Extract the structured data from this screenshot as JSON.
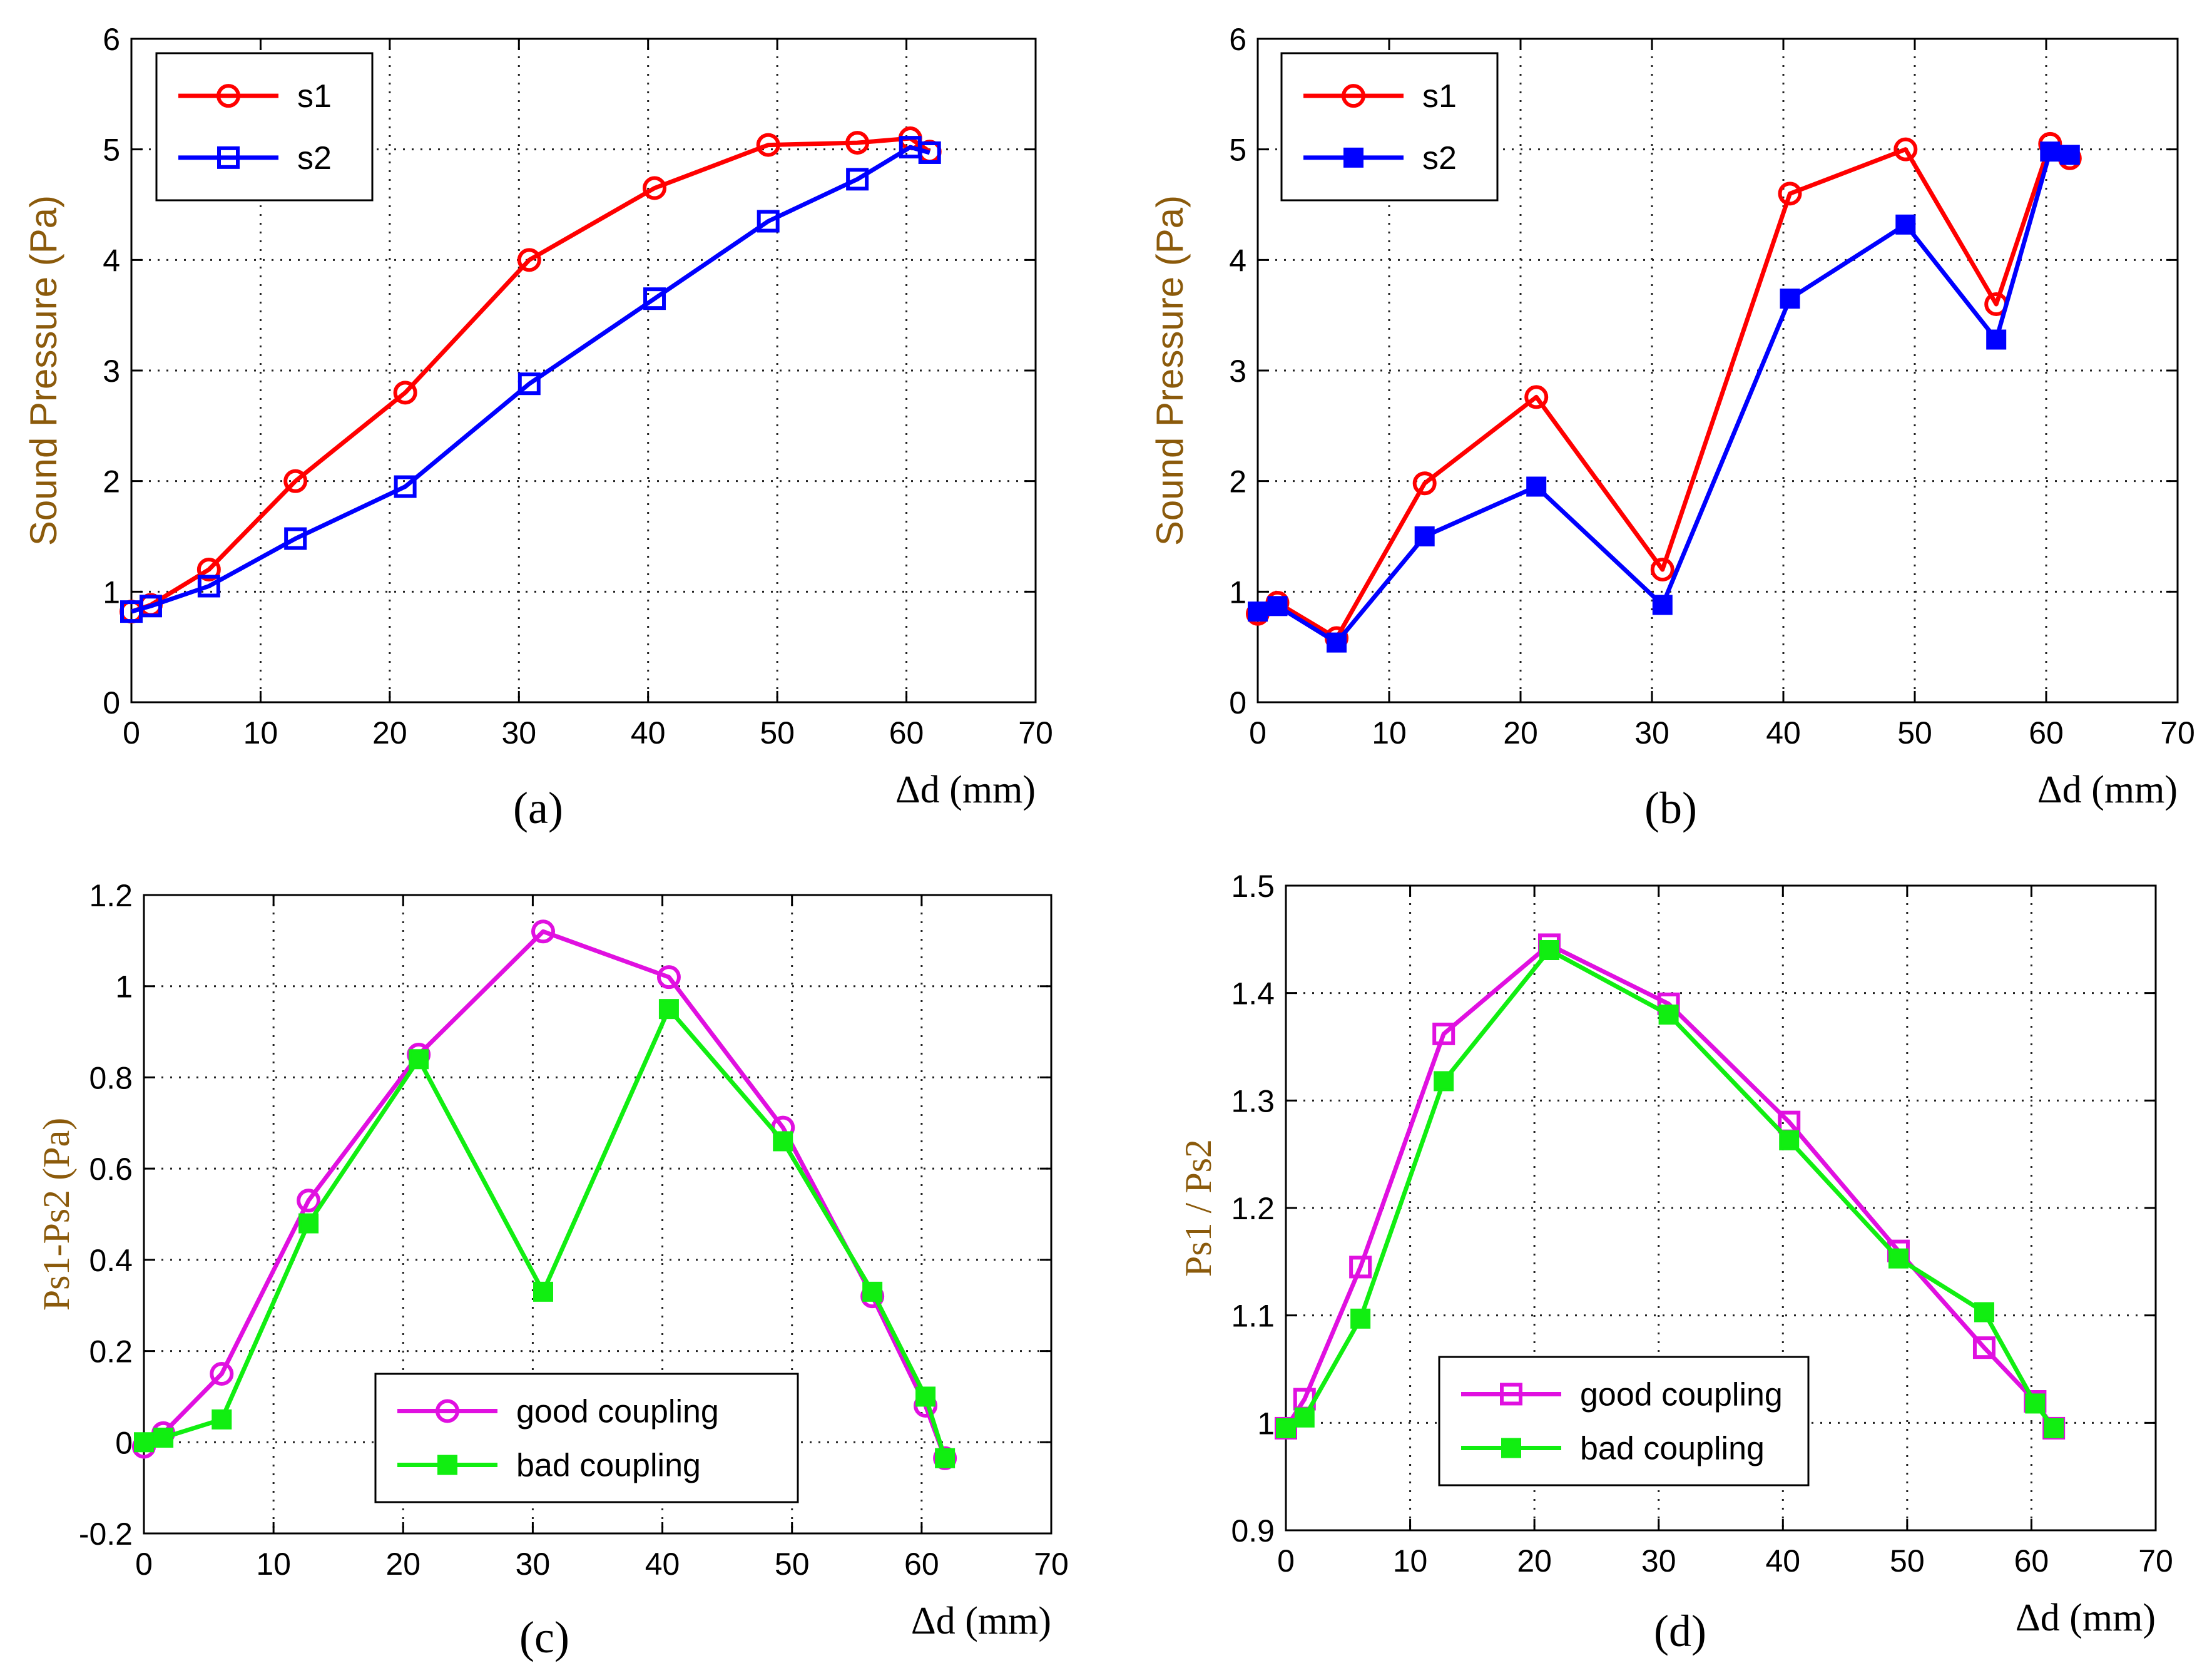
{
  "chart_data": [
    {
      "id": "a",
      "type": "line",
      "caption": "(a)",
      "ylabel": "Sound Pressure   (Pa)",
      "xlabel": "Δd (mm)",
      "xlim": [
        0,
        70
      ],
      "ylim": [
        0,
        6
      ],
      "xticks": [
        "0",
        "10",
        "20",
        "30",
        "40",
        "50",
        "60",
        "70"
      ],
      "yticks": [
        "0",
        "1",
        "2",
        "3",
        "4",
        "5",
        "6"
      ],
      "grid": true,
      "legend_position": "top-left",
      "series": [
        {
          "name": "s1",
          "color": "#ff0000",
          "marker": "circle",
          "x": [
            0,
            1.5,
            6,
            12.7,
            21.2,
            30.8,
            40.5,
            49.3,
            56.2,
            60.3,
            61.8
          ],
          "y": [
            0.82,
            0.88,
            1.2,
            2.0,
            2.8,
            4.0,
            4.65,
            5.04,
            5.06,
            5.1,
            4.98
          ]
        },
        {
          "name": "s2",
          "color": "#0000ff",
          "marker": "square-open",
          "x": [
            0,
            1.5,
            6,
            12.7,
            21.2,
            30.8,
            40.5,
            49.3,
            56.2,
            60.3,
            61.8
          ],
          "y": [
            0.82,
            0.87,
            1.05,
            1.48,
            1.95,
            2.88,
            3.65,
            4.35,
            4.73,
            5.02,
            4.97
          ]
        }
      ]
    },
    {
      "id": "b",
      "type": "line",
      "caption": "(b)",
      "ylabel": "Sound Pressure   (Pa)",
      "xlabel": "Δd (mm)",
      "xlim": [
        0,
        70
      ],
      "ylim": [
        0,
        6
      ],
      "xticks": [
        "0",
        "10",
        "20",
        "30",
        "40",
        "50",
        "60",
        "70"
      ],
      "yticks": [
        "0",
        "1",
        "2",
        "3",
        "4",
        "5",
        "6"
      ],
      "grid": true,
      "legend_position": "top-left",
      "series": [
        {
          "name": "s1",
          "color": "#ff0000",
          "marker": "circle",
          "x": [
            0,
            1.5,
            6,
            12.7,
            21.2,
            30.8,
            40.5,
            49.3,
            56.2,
            60.3,
            61.8
          ],
          "y": [
            0.8,
            0.9,
            0.58,
            1.98,
            2.76,
            1.2,
            4.6,
            5.0,
            3.6,
            5.05,
            4.92
          ]
        },
        {
          "name": "s2",
          "color": "#0000ff",
          "marker": "square-filled",
          "x": [
            0,
            1.5,
            6,
            12.7,
            21.2,
            30.8,
            40.5,
            49.3,
            56.2,
            60.3,
            61.8
          ],
          "y": [
            0.82,
            0.87,
            0.54,
            1.5,
            1.95,
            0.88,
            3.65,
            4.32,
            3.28,
            4.98,
            4.95
          ]
        }
      ]
    },
    {
      "id": "c",
      "type": "line",
      "caption": "(c)",
      "ylabel": "Ps1-Ps2  (Pa)",
      "xlabel": "Δd (mm)",
      "xlim": [
        0,
        70
      ],
      "ylim": [
        -0.2,
        1.2
      ],
      "xticks": [
        "0",
        "10",
        "20",
        "30",
        "40",
        "50",
        "60",
        "70"
      ],
      "yticks": [
        "-0.2",
        "0",
        "0.2",
        "0.4",
        "0.6",
        "0.8",
        "1",
        "1.2"
      ],
      "grid": true,
      "legend_position": "bottom-center",
      "series": [
        {
          "name": "good coupling",
          "color": "#e010e0",
          "marker": "circle",
          "x": [
            0,
            1.5,
            6,
            12.7,
            21.2,
            30.8,
            40.5,
            49.3,
            56.2,
            60.3,
            61.8
          ],
          "y": [
            -0.01,
            0.02,
            0.15,
            0.53,
            0.85,
            1.12,
            1.02,
            0.69,
            0.32,
            0.08,
            -0.035
          ]
        },
        {
          "name": "bad coupling",
          "color": "#11ee11",
          "marker": "square-filled",
          "x": [
            0,
            1.5,
            6,
            12.7,
            21.2,
            30.8,
            40.5,
            49.3,
            56.2,
            60.3,
            61.8
          ],
          "y": [
            0.0,
            0.01,
            0.05,
            0.48,
            0.84,
            0.33,
            0.95,
            0.66,
            0.33,
            0.1,
            -0.035
          ]
        }
      ]
    },
    {
      "id": "d",
      "type": "line",
      "caption": "(d)",
      "ylabel": "Ps1 / Ps2",
      "xlabel": "Δd (mm)",
      "xlim": [
        0,
        70
      ],
      "ylim": [
        0.9,
        1.5
      ],
      "xticks": [
        "0",
        "10",
        "20",
        "30",
        "40",
        "50",
        "60",
        "70"
      ],
      "yticks": [
        "0.9",
        "1",
        "1.1",
        "1.2",
        "1.3",
        "1.4",
        "1.5"
      ],
      "grid": true,
      "legend_position": "bottom-left",
      "series": [
        {
          "name": "good coupling",
          "color": "#e010e0",
          "marker": "square-open",
          "x": [
            0,
            1.5,
            6,
            12.7,
            21.2,
            30.8,
            40.5,
            49.3,
            56.2,
            60.3,
            61.8
          ],
          "y": [
            0.995,
            1.022,
            1.145,
            1.362,
            1.445,
            1.39,
            1.28,
            1.16,
            1.07,
            1.02,
            0.995
          ]
        },
        {
          "name": "bad coupling",
          "color": "#11ee11",
          "marker": "square-filled",
          "x": [
            0,
            1.5,
            6,
            12.7,
            21.2,
            30.8,
            40.5,
            49.3,
            56.2,
            60.3,
            61.8
          ],
          "y": [
            0.995,
            1.005,
            1.097,
            1.318,
            1.44,
            1.38,
            1.263,
            1.153,
            1.103,
            1.018,
            0.995
          ]
        }
      ]
    }
  ]
}
